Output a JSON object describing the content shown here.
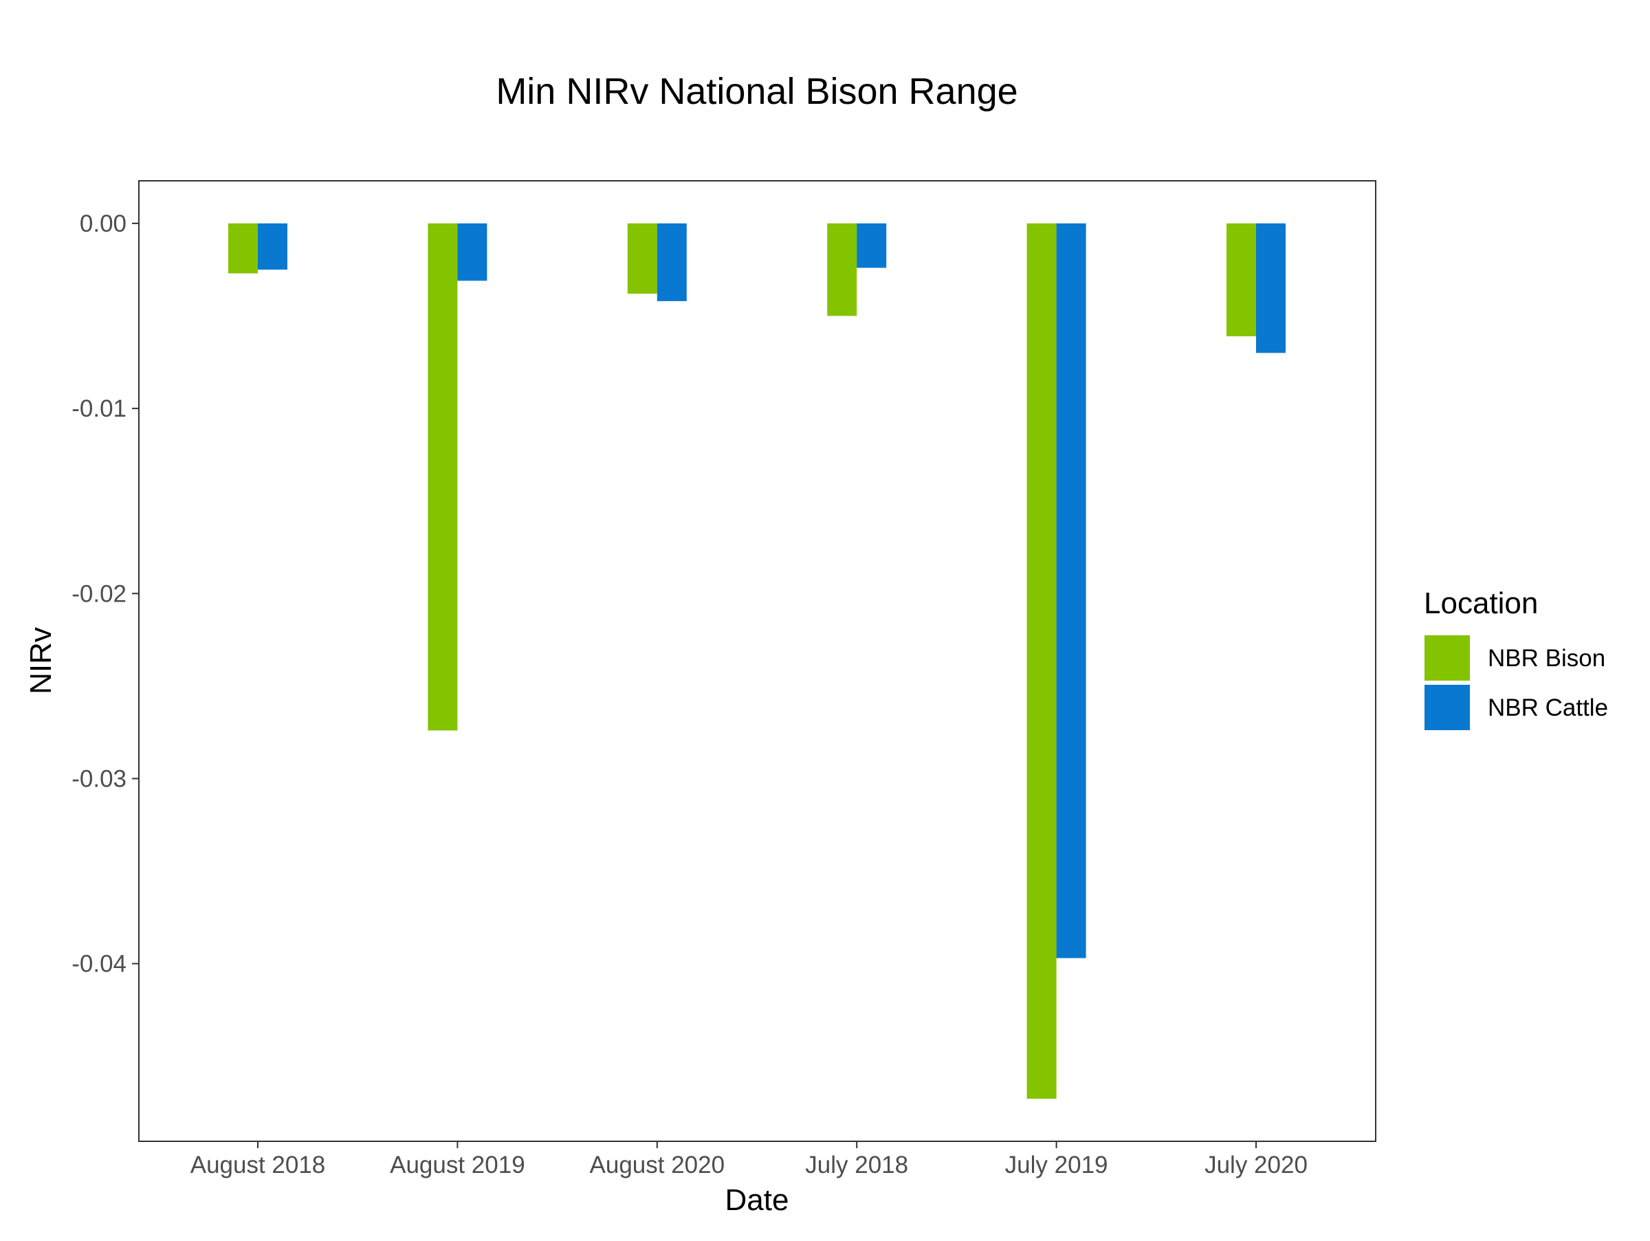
{
  "chart_data": {
    "type": "bar",
    "title": "Min NIRv National Bison Range",
    "xlabel": "Date",
    "ylabel": "NIRv",
    "categories": [
      "August 2018",
      "August 2019",
      "August 2020",
      "July 2018",
      "July 2019",
      "July 2020"
    ],
    "series": [
      {
        "name": "NBR Bison",
        "color": "#84c300",
        "values": [
          -0.0027,
          -0.0274,
          -0.0038,
          -0.005,
          -0.0473,
          -0.0061
        ]
      },
      {
        "name": "NBR Cattle",
        "color": "#0878d0",
        "values": [
          -0.0025,
          -0.0031,
          -0.0042,
          -0.0024,
          -0.0397,
          -0.007
        ]
      }
    ],
    "ylim": [
      -0.0496,
      0.0023
    ],
    "yticks": [
      0.0,
      -0.01,
      -0.02,
      -0.03,
      -0.04
    ],
    "ytick_labels": [
      "0.00",
      "-0.01",
      "-0.02",
      "-0.03",
      "-0.04"
    ],
    "legend": {
      "title": "Location",
      "position": "right"
    },
    "grid": false
  }
}
